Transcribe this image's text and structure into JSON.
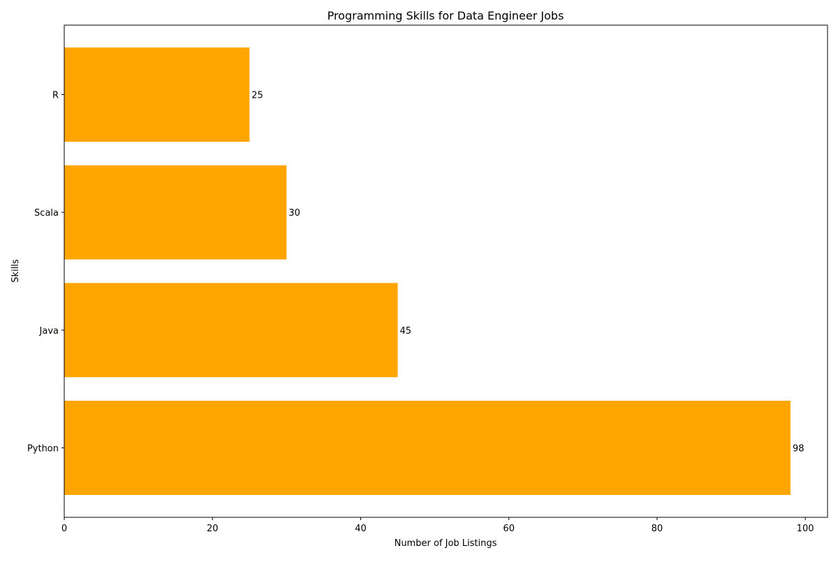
{
  "chart_data": {
    "type": "bar",
    "orientation": "horizontal",
    "title": "Programming Skills for Data Engineer Jobs",
    "xlabel": "Number of Job Listings",
    "ylabel": "Skills",
    "categories": [
      "Python",
      "Java",
      "Scala",
      "R"
    ],
    "values": [
      98,
      45,
      30,
      25
    ],
    "data_labels": [
      "98",
      "45",
      "30",
      "25"
    ],
    "xlim": [
      0,
      103
    ],
    "xticks": [
      0,
      20,
      40,
      60,
      80,
      100
    ],
    "xtick_labels": [
      "0",
      "20",
      "40",
      "60",
      "80",
      "100"
    ],
    "grid": false,
    "legend": "none",
    "bar_color": "#ffa500",
    "axis_color": "#000000"
  }
}
